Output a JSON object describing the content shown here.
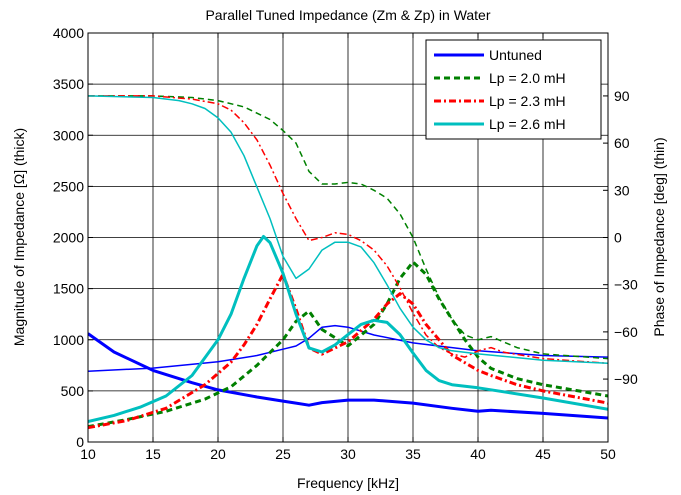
{
  "chart_data": {
    "type": "line",
    "title": "Parallel Tuned Impedance (Zm & Zp) in Water",
    "xlabel": "Frequency [kHz]",
    "ylabel_left": "Magnitude of Impedance [Ω] (thick)",
    "ylabel_right": "Phase of Impedance [deg] (thin)",
    "xlim": [
      10,
      50
    ],
    "ylim_left": [
      0,
      4000
    ],
    "ylim_right": [
      -130,
      130
    ],
    "x_ticks": [
      10,
      15,
      20,
      25,
      30,
      35,
      40,
      45,
      50
    ],
    "y_left_ticks": [
      0,
      500,
      1000,
      1500,
      2000,
      2500,
      3000,
      3500,
      4000
    ],
    "y_right_ticks": [
      -90,
      -60,
      -30,
      0,
      30,
      60,
      90
    ],
    "x_tick_labels": [
      "10",
      "15",
      "20",
      "25",
      "30",
      "35",
      "40",
      "45",
      "50"
    ],
    "y_left_tick_labels": [
      "0",
      "500",
      "1000",
      "1500",
      "2000",
      "2500",
      "3000",
      "3500",
      "4000"
    ],
    "y_right_tick_labels": [
      "−90",
      "−60",
      "−30",
      "0",
      "30",
      "60",
      "90"
    ],
    "grid": true,
    "legend_position": "top-right",
    "legend": [
      {
        "label": "Untuned",
        "color": "#0000ff",
        "dash": "solid"
      },
      {
        "label": "Lp = 2.0 mH",
        "color": "#008000",
        "dash": "dashed"
      },
      {
        "label": "Lp = 2.3 mH",
        "color": "#ff0000",
        "dash": "dashdot"
      },
      {
        "label": "Lp = 2.6 mH",
        "color": "#00bfbf",
        "dash": "solid"
      }
    ],
    "series": [
      {
        "legend": "Untuned",
        "quantity": "magnitude",
        "axis": "left",
        "color": "#0000ff",
        "dash": "solid",
        "thick": true,
        "x": [
          10,
          12,
          15,
          18,
          20,
          23,
          25,
          26,
          27,
          28,
          30,
          32,
          35,
          38,
          40,
          41,
          45,
          50
        ],
        "y": [
          1060,
          880,
          700,
          580,
          510,
          440,
          400,
          380,
          360,
          385,
          410,
          410,
          380,
          330,
          300,
          310,
          280,
          235
        ]
      },
      {
        "legend": "Untuned",
        "quantity": "phase",
        "axis": "right",
        "color": "#0000ff",
        "dash": "solid",
        "thick": false,
        "x": [
          10,
          15,
          20,
          23,
          25,
          26,
          27,
          28,
          29,
          30,
          32,
          35,
          38,
          40,
          45,
          50
        ],
        "y": [
          -85,
          -83,
          -79,
          -75,
          -71,
          -69,
          -64,
          -57,
          -56,
          -57,
          -62,
          -67,
          -70,
          -72,
          -75,
          -76
        ]
      },
      {
        "legend": "Lp = 2.0 mH",
        "quantity": "magnitude",
        "axis": "left",
        "color": "#008000",
        "dash": "dashed",
        "thick": true,
        "x": [
          10,
          13,
          16,
          19,
          21,
          23,
          25,
          26,
          27,
          28,
          30,
          32,
          33,
          34,
          35,
          36,
          37,
          39,
          40,
          41,
          43,
          45,
          50
        ],
        "y": [
          150,
          220,
          300,
          420,
          540,
          750,
          1000,
          1180,
          1280,
          1100,
          940,
          1150,
          1350,
          1600,
          1760,
          1640,
          1400,
          1000,
          830,
          720,
          620,
          560,
          450
        ]
      },
      {
        "legend": "Lp = 2.0 mH",
        "quantity": "phase",
        "axis": "right",
        "color": "#008000",
        "dash": "dashed",
        "thick": false,
        "x": [
          10,
          15,
          18,
          20,
          22,
          24,
          25,
          26,
          27,
          28,
          29,
          30,
          31,
          32,
          33,
          34,
          35,
          36,
          37,
          38,
          39,
          40,
          41,
          43,
          45,
          50
        ],
        "y": [
          90,
          90,
          89,
          87,
          83,
          75,
          68,
          60,
          42,
          34,
          34,
          35,
          34,
          30,
          25,
          15,
          0,
          -20,
          -38,
          -52,
          -62,
          -65,
          -63,
          -70,
          -74,
          -77
        ]
      },
      {
        "legend": "Lp = 2.3 mH",
        "quantity": "magnitude",
        "axis": "left",
        "color": "#ff0000",
        "dash": "dashdot",
        "thick": true,
        "x": [
          10,
          13,
          16,
          19,
          21,
          22,
          23,
          24,
          25,
          26,
          27,
          28,
          30,
          32,
          33,
          34,
          35,
          36,
          38,
          40,
          41,
          43,
          45,
          50
        ],
        "y": [
          140,
          210,
          330,
          560,
          780,
          950,
          1150,
          1400,
          1640,
          1300,
          920,
          860,
          980,
          1200,
          1350,
          1450,
          1350,
          1150,
          850,
          700,
          650,
          560,
          500,
          380
        ]
      },
      {
        "legend": "Lp = 2.3 mH",
        "quantity": "phase",
        "axis": "right",
        "color": "#ff0000",
        "dash": "dashdot",
        "thick": false,
        "x": [
          10,
          15,
          18,
          20,
          21,
          22,
          23,
          24,
          25,
          26,
          27,
          28,
          29,
          30,
          31,
          32,
          33,
          34,
          35,
          36,
          37,
          38,
          39,
          40,
          41,
          42,
          45,
          50
        ],
        "y": [
          90,
          90,
          88,
          85,
          81,
          73,
          62,
          46,
          28,
          12,
          -2,
          0,
          3,
          2,
          -2,
          -8,
          -18,
          -32,
          -48,
          -62,
          -70,
          -74,
          -76,
          -72,
          -70,
          -73,
          -77,
          -80
        ]
      },
      {
        "legend": "Lp = 2.6 mH",
        "quantity": "magnitude",
        "axis": "left",
        "color": "#00bfbf",
        "dash": "solid",
        "thick": true,
        "x": [
          10,
          12,
          14,
          16,
          18,
          20,
          21,
          22,
          23,
          23.5,
          24,
          25,
          26,
          27,
          28,
          29,
          30,
          31,
          32,
          33,
          34,
          35,
          36,
          37,
          38,
          40,
          45,
          50
        ],
        "y": [
          200,
          260,
          340,
          450,
          650,
          1000,
          1250,
          1600,
          1920,
          2010,
          1950,
          1650,
          1250,
          920,
          880,
          950,
          1050,
          1150,
          1190,
          1170,
          1050,
          870,
          700,
          600,
          560,
          530,
          430,
          320
        ]
      },
      {
        "legend": "Lp = 2.6 mH",
        "quantity": "phase",
        "axis": "right",
        "color": "#00bfbf",
        "dash": "solid",
        "thick": false,
        "x": [
          10,
          15,
          17,
          18,
          19,
          20,
          21,
          22,
          23,
          24,
          25,
          26,
          27,
          28,
          29,
          30,
          31,
          32,
          33,
          34,
          35,
          36,
          37,
          38,
          40,
          45,
          50
        ],
        "y": [
          90,
          89,
          87,
          85,
          82,
          76,
          67,
          52,
          32,
          12,
          -12,
          -26,
          -20,
          -8,
          -3,
          -3,
          -6,
          -16,
          -30,
          -45,
          -57,
          -65,
          -70,
          -72,
          -74,
          -78,
          -80
        ]
      }
    ]
  }
}
